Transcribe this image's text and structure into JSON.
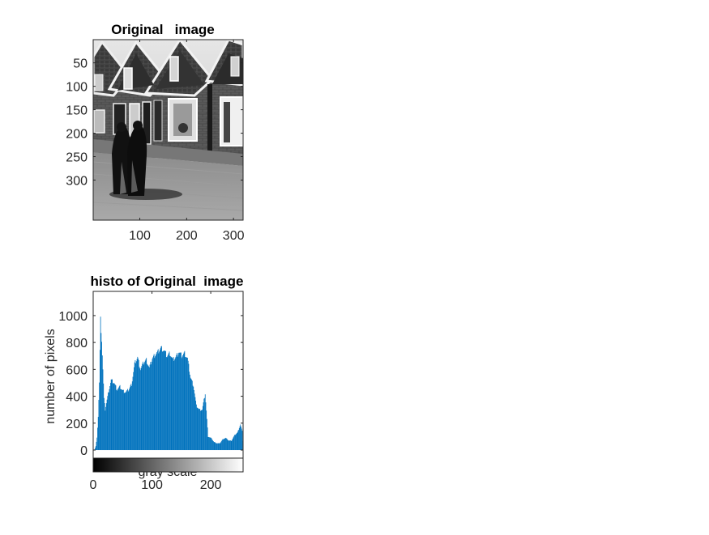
{
  "chart_data": [
    {
      "type": "image",
      "title": "Original   image",
      "xlabel": "",
      "ylabel": "",
      "x_ticks": [
        "100",
        "200",
        "300"
      ],
      "y_ticks": [
        "50",
        "100",
        "150",
        "200",
        "250",
        "300"
      ],
      "xlim": [
        0.5,
        320.5
      ],
      "ylim": [
        0.5,
        385.5
      ],
      "image_content": "grayscale photo of two people walking on a street past a row of brick houses with gabled roofs",
      "colors": {
        "axes": "#262626"
      }
    },
    {
      "type": "bar",
      "title": "histo of Original  image",
      "xlabel": "gray scale",
      "ylabel": "number of pixels",
      "x_ticks": [
        "0",
        "100",
        "200"
      ],
      "y_ticks": [
        "0",
        "200",
        "400",
        "600",
        "800",
        "1000"
      ],
      "xlim": [
        0,
        255
      ],
      "ylim": [
        -60,
        1180
      ],
      "colorbar": "gray",
      "series": [
        {
          "color": "#0072BD",
          "bins_x": [
            0,
            2,
            4,
            6,
            8,
            10,
            12,
            14,
            16,
            18,
            20,
            22,
            25,
            30,
            35,
            40,
            45,
            50,
            55,
            60,
            65,
            70,
            75,
            80,
            85,
            90,
            95,
            100,
            105,
            110,
            115,
            120,
            125,
            130,
            135,
            140,
            145,
            150,
            155,
            160,
            165,
            170,
            175,
            180,
            185,
            190,
            195,
            200,
            205,
            210,
            215,
            220,
            225,
            230,
            235,
            240,
            245,
            250,
            253,
            255
          ],
          "values": [
            0,
            5,
            30,
            90,
            250,
            500,
            970,
            820,
            600,
            380,
            300,
            350,
            420,
            520,
            500,
            450,
            470,
            440,
            430,
            450,
            490,
            640,
            690,
            600,
            650,
            670,
            610,
            680,
            710,
            730,
            760,
            740,
            700,
            720,
            670,
            690,
            730,
            700,
            720,
            680,
            540,
            480,
            330,
            300,
            300,
            420,
            100,
            90,
            60,
            50,
            50,
            80,
            90,
            70,
            70,
            110,
            130,
            190,
            140,
            0
          ]
        }
      ]
    }
  ]
}
